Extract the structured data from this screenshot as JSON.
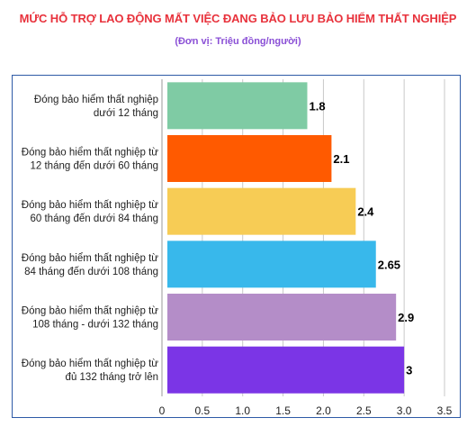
{
  "chart_data": {
    "type": "bar",
    "orientation": "horizontal",
    "title": "MỨC HỖ TRỢ LAO ĐỘNG MẤT VIỆC ĐANG BẢO LƯU BẢO HIỂM THẤT NGHIỆP",
    "subtitle": "(Đơn vị: Triệu đồng/người)",
    "categories": [
      [
        "Đóng bảo hiểm thất nghiệp",
        "dưới 12 tháng"
      ],
      [
        "Đóng bảo hiểm thất nghiệp từ",
        "12 tháng đến dưới 60 tháng"
      ],
      [
        "Đóng bảo hiểm thất nghiệp từ",
        "60 tháng đến dưới 84 tháng"
      ],
      [
        "Đóng bảo hiểm thất nghiệp từ",
        "84 tháng đến dưới 108 tháng"
      ],
      [
        "Đóng bảo hiểm thất nghiệp từ",
        "108 tháng - dưới 132 tháng"
      ],
      [
        "Đóng bảo hiểm thất nghiệp từ",
        "đủ 132 tháng trở lên"
      ]
    ],
    "values": [
      1.8,
      2.1,
      2.4,
      2.65,
      2.9,
      3
    ],
    "value_labels": [
      "1.8",
      "2.1",
      "2.4",
      "2.65",
      "2.9",
      "3"
    ],
    "colors": [
      "#7fcba4",
      "#ff5a00",
      "#f7cc55",
      "#38b8eb",
      "#b48dc8",
      "#7b35e6"
    ],
    "xlim": [
      0,
      3.5
    ],
    "xticks": [
      "0",
      "0.5",
      "1.0",
      "1.5",
      "2.0",
      "2.5",
      "3.0",
      "3.5"
    ],
    "xtick_values": [
      0,
      0.5,
      1.0,
      1.5,
      2.0,
      2.5,
      3.0,
      3.5
    ],
    "grid": true,
    "gridline_color": "#c9c9c9",
    "label_color": "#222222"
  }
}
